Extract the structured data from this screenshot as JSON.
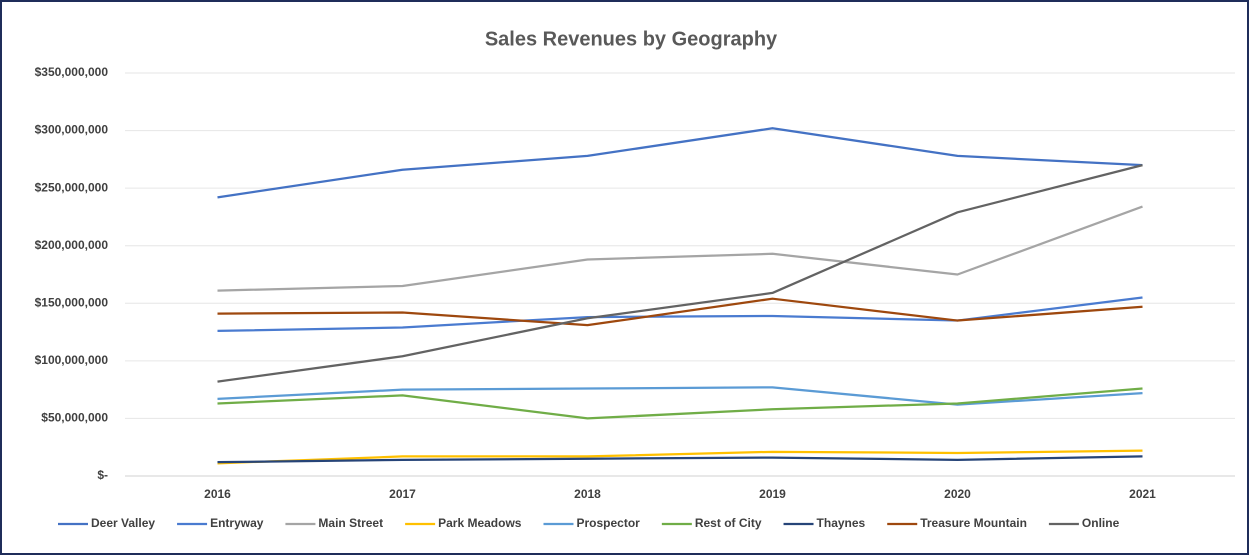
{
  "chart_data": {
    "type": "line",
    "title": "Sales Revenues by Geography",
    "categories": [
      "2016",
      "2017",
      "2018",
      "2019",
      "2020",
      "2021"
    ],
    "series": [
      {
        "name": "Deer Valley",
        "color": "#4472c4",
        "values": [
          242000000,
          266000000,
          278000000,
          302000000,
          278000000,
          270000000
        ]
      },
      {
        "name": "Entryway",
        "color": "#4a7bd0",
        "values": [
          126000000,
          129000000,
          138000000,
          139000000,
          135000000,
          155000000
        ]
      },
      {
        "name": "Main Street",
        "color": "#a5a5a5",
        "values": [
          161000000,
          165000000,
          188000000,
          193000000,
          175000000,
          234000000
        ]
      },
      {
        "name": "Park Meadows",
        "color": "#ffc000",
        "values": [
          11000000,
          17000000,
          17000000,
          21000000,
          20000000,
          22000000
        ]
      },
      {
        "name": "Prospector",
        "color": "#5b9bd5",
        "values": [
          67000000,
          75000000,
          76000000,
          77000000,
          62000000,
          72000000
        ]
      },
      {
        "name": "Rest of City",
        "color": "#70ad47",
        "values": [
          63000000,
          70000000,
          50000000,
          58000000,
          63000000,
          76000000
        ]
      },
      {
        "name": "Thaynes",
        "color": "#264478",
        "values": [
          12000000,
          14000000,
          15000000,
          16000000,
          14000000,
          17000000
        ]
      },
      {
        "name": "Treasure Mountain",
        "color": "#9e480e",
        "values": [
          141000000,
          142000000,
          131000000,
          154000000,
          135000000,
          147000000
        ]
      },
      {
        "name": "Online",
        "color": "#636363",
        "values": [
          82000000,
          104000000,
          137000000,
          159000000,
          229000000,
          270000000
        ]
      }
    ],
    "ylim": [
      0,
      350000000
    ],
    "yticks": [
      {
        "value": 0,
        "label": "$-"
      },
      {
        "value": 50000000,
        "label": "$50,000,000"
      },
      {
        "value": 100000000,
        "label": "$100,000,000"
      },
      {
        "value": 150000000,
        "label": "$150,000,000"
      },
      {
        "value": 200000000,
        "label": "$200,000,000"
      },
      {
        "value": 250000000,
        "label": "$250,000,000"
      },
      {
        "value": 300000000,
        "label": "$300,000,000"
      },
      {
        "value": 350000000,
        "label": "$350,000,000"
      }
    ],
    "grid": true,
    "legend": "bottom"
  }
}
